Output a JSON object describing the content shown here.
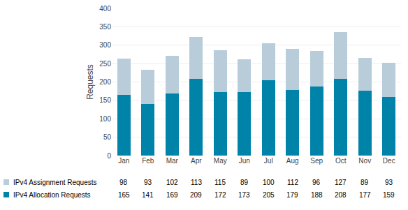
{
  "chart_data": {
    "type": "bar",
    "stacked": true,
    "categories": [
      "Jan",
      "Feb",
      "Mar",
      "Apr",
      "May",
      "Jun",
      "Jul",
      "Aug",
      "Sep",
      "Oct",
      "Nov",
      "Dec"
    ],
    "series": [
      {
        "name": "IPv4 Allocation Requests",
        "color": "#0083a9",
        "values": [
          165,
          141,
          169,
          209,
          172,
          173,
          205,
          179,
          188,
          208,
          177,
          159
        ]
      },
      {
        "name": "IPv4 Assignment Requests",
        "color": "#b8cdd9",
        "values": [
          98,
          93,
          102,
          113,
          115,
          89,
          100,
          112,
          96,
          127,
          89,
          93
        ]
      }
    ],
    "ylabel": "Requests",
    "ylim": [
      0,
      400
    ],
    "yticks": [
      0,
      50,
      100,
      150,
      200,
      250,
      300,
      350,
      400
    ],
    "grid": true,
    "data_labels": true
  }
}
